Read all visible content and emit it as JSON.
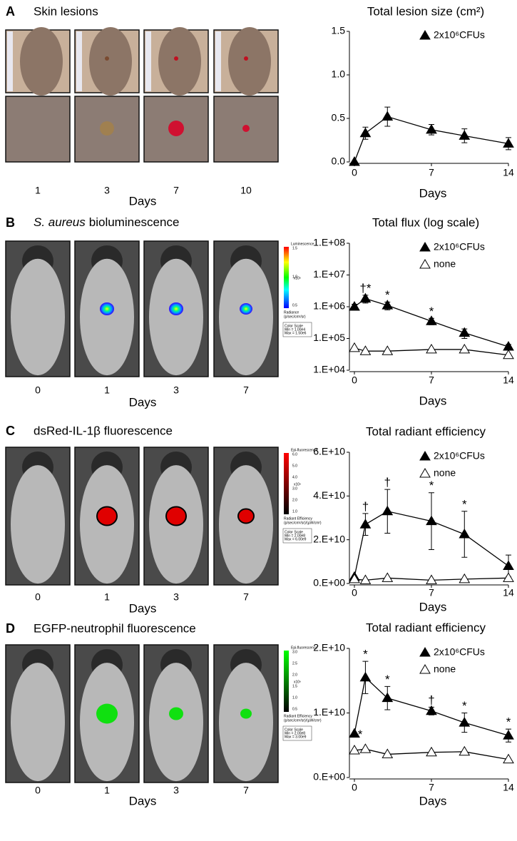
{
  "panels": [
    {
      "letter": "A",
      "title": "Skin lesions",
      "days": [
        "1",
        "3",
        "7",
        "10"
      ],
      "xlabel": "Days"
    },
    {
      "letter": "B",
      "title_italic": "S. aureus",
      "title": "bioluminescence",
      "days": [
        "0",
        "1",
        "3",
        "7"
      ],
      "xlabel": "Days",
      "colorbar": {
        "title": "Luminescence",
        "ticks": [
          "1.5",
          "1.0",
          "0.5"
        ],
        "unit": "x10⁶",
        "label": "Radiance",
        "sublabel": "(p/sec/cm²/sr)",
        "scale": "Color Scale",
        "min": "Min = 1.00e4",
        "max": "Max = 1.50e6"
      }
    },
    {
      "letter": "C",
      "title": "dsRed-IL-1β fluorescence",
      "days": [
        "0",
        "1",
        "3",
        "7"
      ],
      "xlabel": "Days",
      "colorbar": {
        "title": "Epi-fluorescence",
        "ticks": [
          "6.0",
          "5.0",
          "4.0",
          "3.0",
          "2.0",
          "1.0"
        ],
        "unit": "x10⁹",
        "label": "Radiant Efficiency",
        "sublabel": "(p/sec/cm²/sr)/(µW/cm²)",
        "scale": "Color Scale",
        "min": "Min = 2.00e8",
        "max": "Max = 6.00e9"
      }
    },
    {
      "letter": "D",
      "title": "EGFP-neutrophil fluorescence",
      "days": [
        "0",
        "1",
        "3",
        "7"
      ],
      "xlabel": "Days",
      "colorbar": {
        "title": "Epi-fluorescence",
        "ticks": [
          "3.0",
          "2.5",
          "2.0",
          "1.5",
          "1.0",
          "0.5"
        ],
        "unit": "x10⁹",
        "label": "Radiant Efficiency",
        "sublabel": "(p/sec/cm²/sr)/(µW/cm²)",
        "scale": "Color Scale",
        "min": "Min = 2.00e8",
        "max": "Max = 3.00e9"
      }
    }
  ],
  "chart_data": [
    {
      "type": "line",
      "title": "Total lesion size (cm²)",
      "xlabel": "Days",
      "x": [
        0,
        1,
        3,
        7,
        10,
        14
      ],
      "xlim": [
        0,
        14
      ],
      "xticks": [
        0,
        7,
        14
      ],
      "ylim": [
        0,
        1.5
      ],
      "yticks": [
        {
          "value": 0,
          "label": "0.0"
        },
        {
          "value": 0.5,
          "label": "0.5"
        },
        {
          "value": 1,
          "label": "1.0"
        },
        {
          "value": 1.5,
          "label": "1.5"
        }
      ],
      "grid": false,
      "series": [
        {
          "name": "2x10⁶CFUs",
          "color": "#000000",
          "values": [
            0,
            0.33,
            0.52,
            0.37,
            0.3,
            0.21
          ],
          "errors": [
            0,
            0.07,
            0.11,
            0.06,
            0.08,
            0.07
          ]
        }
      ]
    },
    {
      "type": "line",
      "title": "Total flux (log scale)",
      "xlabel": "Days",
      "x": [
        0,
        1,
        3,
        7,
        10,
        14
      ],
      "xlim": [
        0,
        14
      ],
      "xticks": [
        0,
        7,
        14
      ],
      "log_scale": true,
      "ylim": [
        10000,
        100000000
      ],
      "yticks": [
        {
          "value": 10000,
          "label": "1.E+04"
        },
        {
          "value": 100000,
          "label": "1.E+05"
        },
        {
          "value": 1000000,
          "label": "1.E+06"
        },
        {
          "value": 10000000,
          "label": "1.E+07"
        },
        {
          "value": 100000000,
          "label": "1.E+08"
        }
      ],
      "grid": false,
      "series": [
        {
          "name": "2x10⁶CFUs",
          "color": "#000000",
          "values": [
            1000000,
            1800000,
            1100000,
            350000,
            150000,
            55000
          ],
          "errors": [
            200000,
            500000,
            300000,
            80000,
            50000,
            10000
          ],
          "significance": [
            null,
            "†*",
            "*",
            "*",
            null,
            null
          ]
        },
        {
          "name": "none",
          "color": "#ffffff",
          "values": [
            50000,
            40000,
            40000,
            45000,
            45000,
            30000
          ]
        }
      ]
    },
    {
      "type": "line",
      "title": "Total radiant efficiency",
      "xlabel": "Days",
      "x": [
        0,
        1,
        3,
        7,
        10,
        14
      ],
      "xlim": [
        0,
        14
      ],
      "xticks": [
        0,
        7,
        14
      ],
      "ylim": [
        0,
        60000000000
      ],
      "yticks": [
        {
          "value": 0,
          "label": "0.E+00"
        },
        {
          "value": 20000000000,
          "label": "2.E+10"
        },
        {
          "value": 40000000000,
          "label": "4.E+10"
        },
        {
          "value": 60000000000,
          "label": "6.E+10"
        }
      ],
      "grid": false,
      "series": [
        {
          "name": "2x10⁶CFUs",
          "color": "#000000",
          "values": [
            3000000000,
            27000000000,
            33000000000,
            28500000000,
            22500000000,
            8000000000
          ],
          "errors": [
            0,
            5000000000,
            10000000000,
            13000000000,
            10500000000,
            5000000000
          ],
          "significance": [
            null,
            "†",
            "†",
            "*",
            "*",
            null
          ]
        },
        {
          "name": "none",
          "color": "#ffffff",
          "values": [
            2000000000,
            1500000000,
            2500000000,
            1500000000,
            2000000000,
            2500000000
          ]
        }
      ]
    },
    {
      "type": "line",
      "title": "Total radiant efficiency",
      "xlabel": "Days",
      "x": [
        0,
        1,
        3,
        7,
        10,
        14
      ],
      "xlim": [
        0,
        14
      ],
      "xticks": [
        0,
        7,
        14
      ],
      "ylim": [
        0,
        20000000000
      ],
      "yticks": [
        {
          "value": 0,
          "label": "0.E+00"
        },
        {
          "value": 10000000000,
          "label": "1.E+10"
        },
        {
          "value": 20000000000,
          "label": "2.E+10"
        }
      ],
      "grid": false,
      "series": [
        {
          "name": "2x10⁶CFUs",
          "color": "#000000",
          "values": [
            6800000000,
            15500000000,
            12300000000,
            10300000000,
            8500000000,
            6500000000
          ],
          "errors": [
            0,
            2500000000,
            1800000000,
            600000000,
            1500000000,
            1000000000
          ],
          "significance": [
            "*",
            "*",
            "*",
            "†",
            "*",
            "*"
          ]
        },
        {
          "name": "none",
          "color": "#ffffff",
          "values": [
            4200000000,
            4400000000,
            3600000000,
            3900000000,
            4000000000,
            2800000000
          ]
        }
      ]
    }
  ]
}
